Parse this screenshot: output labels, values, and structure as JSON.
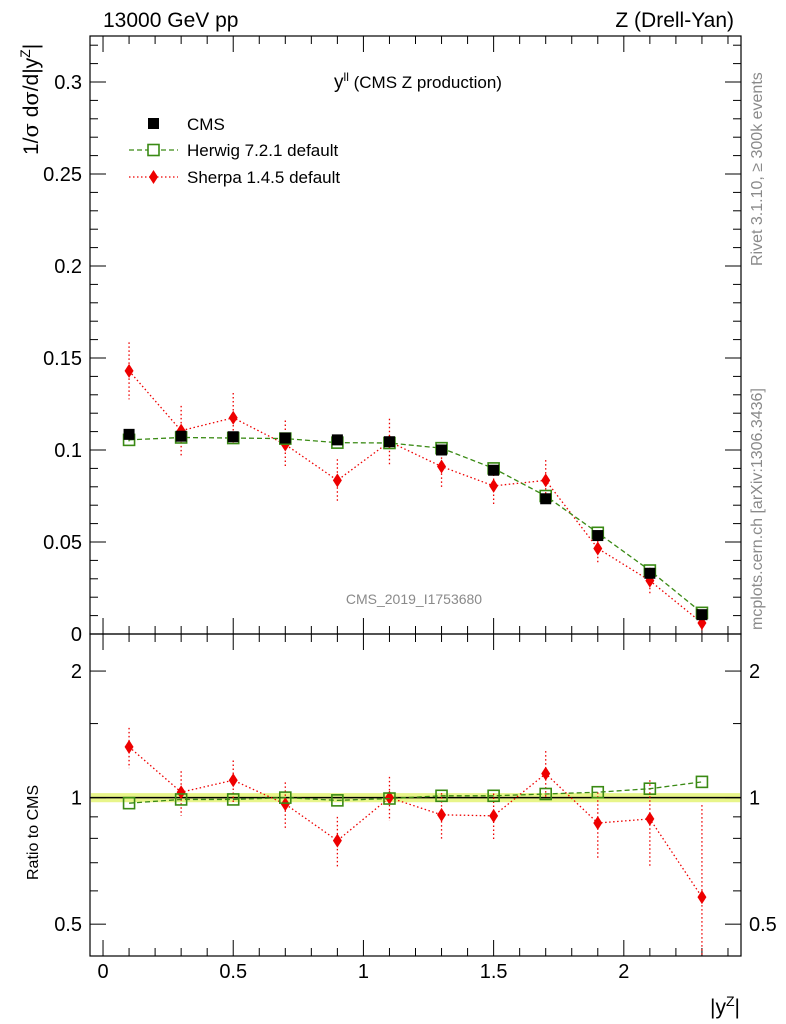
{
  "header": {
    "left": "13000 GeV pp",
    "right": "Z (Drell-Yan)"
  },
  "side": {
    "rivet": "Rivet 3.1.10, ≥ 300k events",
    "mcplots": "mcplots.cern.ch [arXiv:1306.3436]"
  },
  "plot_title": {
    "main": "y",
    "sup": "ll",
    "rest": " (CMS Z production)"
  },
  "watermark": "CMS_2019_I1753680",
  "colors": {
    "cms": "#000000",
    "herwig": "#3a8a14",
    "sherpa": "#ee0000",
    "band": "#e8f58a"
  },
  "chart_data": [
    {
      "type": "scatter",
      "panel": "main",
      "ylabel": "1/σ dσ/d|y^Z|",
      "ylim": [
        0,
        0.325
      ],
      "xlim": [
        -0.05,
        2.45
      ],
      "yticks": [
        0,
        0.05,
        0.1,
        0.15,
        0.2,
        0.25,
        0.3
      ],
      "ytick_labels": [
        "0",
        "0.05",
        "0.1",
        "0.15",
        "0.2",
        "0.25",
        "0.3"
      ],
      "legend": [
        "CMS",
        "Herwig 7.2.1 default",
        "Sherpa 1.4.5 default"
      ],
      "legend_position": "top-left",
      "x": [
        0.1,
        0.3,
        0.5,
        0.7,
        0.9,
        1.1,
        1.3,
        1.5,
        1.7,
        1.9,
        2.1,
        2.3
      ],
      "series": [
        {
          "name": "CMS",
          "marker": "filled-square",
          "values": [
            0.1085,
            0.1075,
            0.1072,
            0.1065,
            0.1055,
            0.1045,
            0.1,
            0.089,
            0.0735,
            0.0535,
            0.033,
            0.0105
          ],
          "err": [
            0.0015,
            0.0015,
            0.0015,
            0.0015,
            0.0015,
            0.0015,
            0.0015,
            0.0013,
            0.0012,
            0.001,
            0.001,
            0.001
          ]
        },
        {
          "name": "Herwig 7.2.1 default",
          "marker": "open-square",
          "line": "dashed",
          "values": [
            0.1055,
            0.1068,
            0.1065,
            0.1062,
            0.104,
            0.1038,
            0.101,
            0.09,
            0.075,
            0.055,
            0.0345,
            0.0115
          ],
          "err": [
            0.0008,
            0.0008,
            0.0008,
            0.0008,
            0.0008,
            0.0008,
            0.0008,
            0.0007,
            0.0007,
            0.0006,
            0.0005,
            0.0004
          ]
        },
        {
          "name": "Sherpa 1.4.5 default",
          "marker": "diamond",
          "line": "dotted",
          "values": [
            0.143,
            0.1105,
            0.1175,
            0.103,
            0.0835,
            0.1045,
            0.091,
            0.0805,
            0.0835,
            0.0465,
            0.029,
            0.006
          ],
          "err": [
            0.0155,
            0.0135,
            0.0135,
            0.013,
            0.0115,
            0.0125,
            0.0115,
            0.0105,
            0.011,
            0.0085,
            0.007,
            0.0055
          ]
        }
      ]
    },
    {
      "type": "scatter",
      "panel": "ratio",
      "ylabel": "Ratio to CMS",
      "xlabel": "|y^Z|",
      "yscale": "log",
      "ylim": [
        0.42,
        2.45
      ],
      "xlim": [
        -0.05,
        2.45
      ],
      "yticks": [
        0.5,
        1,
        2
      ],
      "ytick_labels": [
        "0.5",
        "1",
        "2"
      ],
      "xticks": [
        0,
        0.5,
        1,
        1.5,
        2
      ],
      "xtick_labels": [
        "0",
        "0.5",
        "1",
        "1.5",
        "2"
      ],
      "band": [
        0.975,
        1.025
      ],
      "x": [
        0.1,
        0.3,
        0.5,
        0.7,
        0.9,
        1.1,
        1.3,
        1.5,
        1.7,
        1.9,
        2.1,
        2.3
      ],
      "series": [
        {
          "name": "Herwig 7.2.1 default",
          "marker": "open-square",
          "line": "dashed",
          "values": [
            0.97,
            0.99,
            0.99,
            1.0,
            0.985,
            0.995,
            1.01,
            1.01,
            1.02,
            1.03,
            1.05,
            1.09
          ]
        },
        {
          "name": "Sherpa 1.4.5 default",
          "marker": "diamond",
          "line": "dotted",
          "values": [
            1.32,
            1.03,
            1.1,
            0.965,
            0.79,
            1.0,
            0.91,
            0.905,
            1.14,
            0.87,
            0.89,
            0.58
          ],
          "err": [
            0.145,
            0.125,
            0.125,
            0.122,
            0.11,
            0.12,
            0.115,
            0.118,
            0.15,
            0.16,
            0.21,
            0.38
          ]
        }
      ]
    }
  ]
}
